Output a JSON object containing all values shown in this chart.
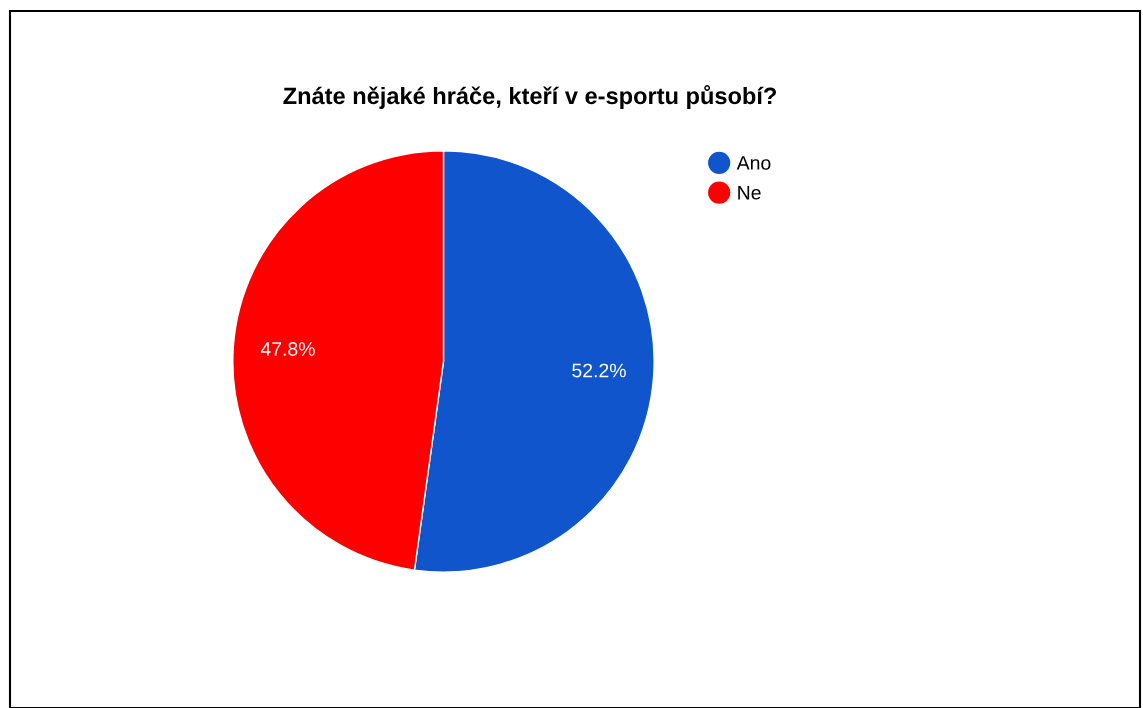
{
  "chart_data": {
    "type": "pie",
    "title": "Znáte nějaké hráče, kteří v e-sportu působí?",
    "categories": [
      "Ano",
      "Ne"
    ],
    "values": [
      52.2,
      47.8
    ],
    "colors": [
      "#1155cc",
      "#ff0000"
    ],
    "value_labels": [
      "52.2%",
      "47.8%"
    ],
    "legend": "top right"
  }
}
